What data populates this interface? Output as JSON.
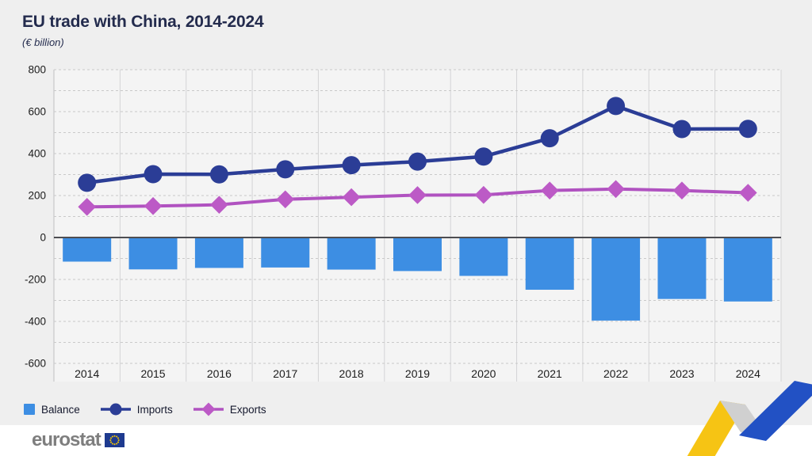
{
  "chart_data": {
    "type": "combo-bar-line",
    "title": "EU trade with China, 2014-2024",
    "subtitle": "(€ billion)",
    "categories": [
      "2014",
      "2015",
      "2016",
      "2017",
      "2018",
      "2019",
      "2020",
      "2021",
      "2022",
      "2023",
      "2024"
    ],
    "series": [
      {
        "name": "Balance",
        "type": "bar",
        "marker": "square",
        "values": [
          -115,
          -152,
          -145,
          -143,
          -153,
          -160,
          -183,
          -249,
          -396,
          -293,
          -305
        ]
      },
      {
        "name": "Imports",
        "type": "line",
        "marker": "circle",
        "values": [
          261,
          302,
          301,
          325,
          345,
          362,
          386,
          473,
          627,
          517,
          518
        ]
      },
      {
        "name": "Exports",
        "type": "line",
        "marker": "diamond",
        "values": [
          146,
          150,
          156,
          182,
          192,
          202,
          203,
          224,
          231,
          224,
          213
        ]
      }
    ],
    "ylim": [
      -600,
      800
    ],
    "ytick_step": 200,
    "grid_minor_step": 100,
    "grid": "horizontal-dashed",
    "legend_position": "bottom-left",
    "xlabel": "",
    "ylabel": ""
  },
  "legend": {
    "items": [
      {
        "label": "Balance",
        "series": "balance"
      },
      {
        "label": "Imports",
        "series": "imports"
      },
      {
        "label": "Exports",
        "series": "exports"
      }
    ]
  },
  "footer": {
    "logo_text": "eurostat"
  },
  "colors": {
    "page_bg": "#EFEFEF",
    "plot_bg": "#F4F4F4",
    "footer_bg": "#FFFFFF",
    "title_text": "#232B4D",
    "axis_text": "#1C1C1C",
    "grid": "#C9C9C9",
    "separator": "#D4D4D6",
    "axis_line": "#BFBFC2",
    "zero_line": "#4D4D52",
    "balance": "#3D8EE3",
    "imports": "#2B3D96",
    "exports": "#B052C0",
    "exports_marker": "#BC5AC6",
    "logo_text": "#7E7E7E",
    "flag_bg": "#1E3A8F",
    "flag_stars": "#F4C500",
    "ribbon_yellow": "#F6C414",
    "ribbon_gray": "#D0D0D0",
    "ribbon_blue": "#2251C4"
  }
}
